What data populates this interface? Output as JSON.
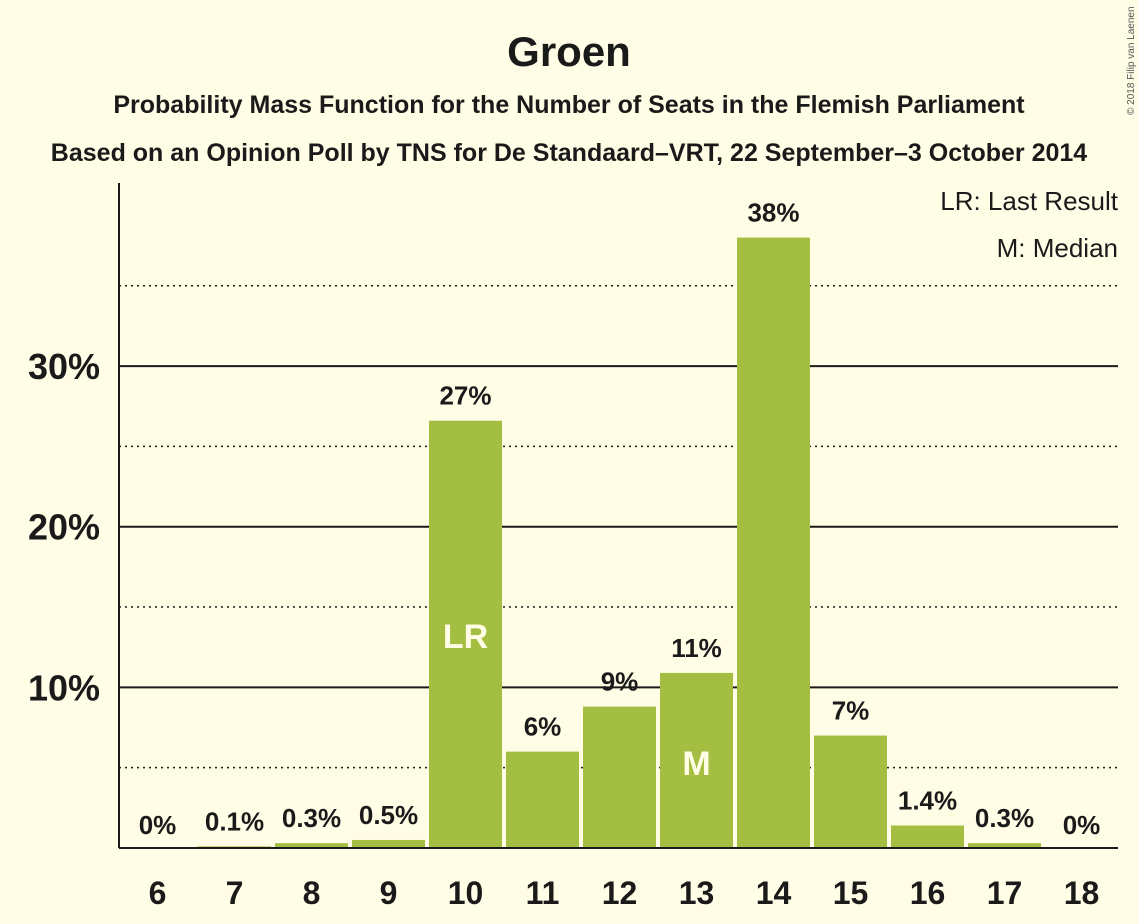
{
  "copyright": "© 2018 Filip van Laenen",
  "colors": {
    "background": "#fffde6",
    "bar": "#a3be41",
    "text": "#1a1a1a",
    "bar_label_inside": "#fffde6"
  },
  "chart_data": {
    "type": "bar",
    "title": "Groen",
    "subtitle": "Probability Mass Function for the Number of Seats in the Flemish Parliament",
    "subtitle2": "Based on an Opinion Poll by TNS for De Standaard–VRT, 22 September–3 October 2014",
    "categories": [
      "6",
      "7",
      "8",
      "9",
      "10",
      "11",
      "12",
      "13",
      "14",
      "15",
      "16",
      "17",
      "18"
    ],
    "values": [
      0,
      0.1,
      0.3,
      0.5,
      26.6,
      6.0,
      8.8,
      10.9,
      38.0,
      7.0,
      1.4,
      0.3,
      0
    ],
    "data_labels": [
      "0%",
      "0.1%",
      "0.3%",
      "0.5%",
      "27%",
      "6%",
      "9%",
      "11%",
      "38%",
      "7%",
      "1.4%",
      "0.3%",
      "0%"
    ],
    "inside_labels": {
      "10": "LR",
      "13": "M"
    },
    "ylim": [
      0,
      41.4
    ],
    "yticks": [
      10,
      20,
      30
    ],
    "ytick_labels": [
      "10%",
      "20%",
      "30%"
    ],
    "minor_gridlines": [
      5,
      15,
      25,
      35
    ],
    "legend": [
      "LR: Last Result",
      "M: Median"
    ],
    "legend_position": "top-right",
    "grid": true
  }
}
